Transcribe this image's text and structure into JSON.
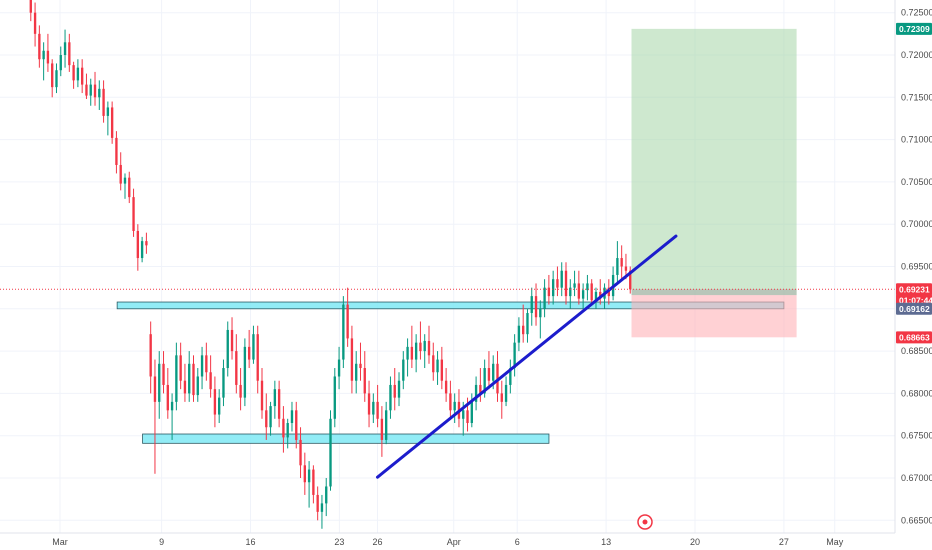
{
  "chart_data": {
    "type": "candlestick",
    "title": "",
    "xlabel": "",
    "ylabel": "",
    "ylim": [
      0.6635,
      0.7265
    ],
    "grid": true,
    "y_ticks": [
      "0.72500",
      "0.72000",
      "0.71500",
      "0.71000",
      "0.70500",
      "0.70000",
      "0.69500",
      "0.69000",
      "0.68500",
      "0.68000",
      "0.67500",
      "0.67000",
      "0.66500"
    ],
    "x_ticks": [
      {
        "label": "Mar",
        "day": 0
      },
      {
        "label": "9",
        "day": 8
      },
      {
        "label": "16",
        "day": 15
      },
      {
        "label": "23",
        "day": 22
      },
      {
        "label": "26",
        "day": 25
      },
      {
        "label": "Apr",
        "day": 31
      },
      {
        "label": "6",
        "day": 36
      },
      {
        "label": "13",
        "day": 43
      },
      {
        "label": "20",
        "day": 50
      },
      {
        "label": "27",
        "day": 57
      },
      {
        "label": "May",
        "day": 61
      }
    ],
    "price_tags": [
      {
        "label": "0.72309",
        "value": 0.72309,
        "color": "#089981"
      },
      {
        "label": "0.69231",
        "value": 0.69231,
        "color": "#f23645"
      },
      {
        "label": "01:07:44",
        "value": 0.691,
        "color": "#f23645"
      },
      {
        "label": "0.69162",
        "value": 0.69,
        "color": "#5d6b92"
      },
      {
        "label": "0.68663",
        "value": 0.68663,
        "color": "#f23645"
      }
    ],
    "current_price": 0.69231,
    "zones": [
      {
        "name": "resistance-zone",
        "top": 0.6908,
        "bottom": 0.69,
        "start_day": 4.5,
        "end_day": 57.0
      },
      {
        "name": "support-zone",
        "top": 0.6752,
        "bottom": 0.6741,
        "start_day": 6.5,
        "end_day": 38.5
      }
    ],
    "trendline": {
      "start": {
        "day": 25,
        "price": 0.6701
      },
      "end": {
        "day": 48.5,
        "price": 0.6986
      }
    },
    "position": {
      "start_day": 45.0,
      "end_day": 58.0,
      "entry": 0.69162,
      "target": 0.72309,
      "stop": 0.68663
    },
    "up_color": "#089981",
    "down_color": "#f23645",
    "candles": [
      [
        0.727,
        0.7285,
        0.724,
        0.725
      ],
      [
        0.725,
        0.7262,
        0.721,
        0.7225
      ],
      [
        0.7225,
        0.7235,
        0.7185,
        0.7195
      ],
      [
        0.7195,
        0.7215,
        0.717,
        0.7205
      ],
      [
        0.7205,
        0.7225,
        0.718,
        0.719
      ],
      [
        0.719,
        0.7195,
        0.715,
        0.7162
      ],
      [
        0.7162,
        0.719,
        0.7155,
        0.7182
      ],
      [
        0.7182,
        0.721,
        0.7175,
        0.72
      ],
      [
        0.72,
        0.723,
        0.7185,
        0.7215
      ],
      [
        0.7215,
        0.7225,
        0.718,
        0.7188
      ],
      [
        0.7188,
        0.7192,
        0.716,
        0.717
      ],
      [
        0.717,
        0.7195,
        0.7162,
        0.7185
      ],
      [
        0.7185,
        0.7195,
        0.7155,
        0.7165
      ],
      [
        0.7165,
        0.7178,
        0.7148,
        0.7152
      ],
      [
        0.7152,
        0.7172,
        0.714,
        0.7165
      ],
      [
        0.7165,
        0.718,
        0.714,
        0.715
      ],
      [
        0.715,
        0.717,
        0.7135,
        0.716
      ],
      [
        0.716,
        0.717,
        0.712,
        0.7128
      ],
      [
        0.7128,
        0.7145,
        0.7105,
        0.7138
      ],
      [
        0.7138,
        0.7145,
        0.7095,
        0.7102
      ],
      [
        0.7102,
        0.711,
        0.706,
        0.707
      ],
      [
        0.707,
        0.7085,
        0.704,
        0.7048
      ],
      [
        0.7048,
        0.706,
        0.703,
        0.7055
      ],
      [
        0.7055,
        0.7062,
        0.7025,
        0.7032
      ],
      [
        0.7032,
        0.7042,
        0.6985,
        0.6992
      ],
      [
        0.6992,
        0.7,
        0.6945,
        0.696
      ],
      [
        0.696,
        0.6985,
        0.6955,
        0.698
      ],
      [
        0.698,
        0.699,
        0.6965,
        0.6975
      ],
      [
        0.687,
        0.6885,
        0.68,
        0.682
      ],
      [
        0.682,
        0.684,
        0.6705,
        0.679
      ],
      [
        0.679,
        0.685,
        0.677,
        0.6835
      ],
      [
        0.6835,
        0.685,
        0.68,
        0.681
      ],
      [
        0.681,
        0.683,
        0.677,
        0.678
      ],
      [
        0.678,
        0.68,
        0.6745,
        0.679
      ],
      [
        0.679,
        0.686,
        0.678,
        0.6845
      ],
      [
        0.6845,
        0.686,
        0.6805,
        0.6815
      ],
      [
        0.6815,
        0.6835,
        0.679,
        0.68
      ],
      [
        0.68,
        0.685,
        0.679,
        0.6835
      ],
      [
        0.6835,
        0.6845,
        0.679,
        0.6798
      ],
      [
        0.6798,
        0.683,
        0.679,
        0.682
      ],
      [
        0.682,
        0.6855,
        0.6805,
        0.6845
      ],
      [
        0.6845,
        0.686,
        0.6815,
        0.6825
      ],
      [
        0.6825,
        0.6845,
        0.6795,
        0.6805
      ],
      [
        0.6805,
        0.682,
        0.676,
        0.6775
      ],
      [
        0.6775,
        0.6805,
        0.6765,
        0.6795
      ],
      [
        0.6795,
        0.684,
        0.6785,
        0.683
      ],
      [
        0.683,
        0.6885,
        0.682,
        0.6875
      ],
      [
        0.6875,
        0.689,
        0.684,
        0.685
      ],
      [
        0.685,
        0.687,
        0.68,
        0.681
      ],
      [
        0.681,
        0.683,
        0.678,
        0.6795
      ],
      [
        0.6795,
        0.6865,
        0.6785,
        0.6855
      ],
      [
        0.6855,
        0.6875,
        0.683,
        0.684
      ],
      [
        0.684,
        0.688,
        0.6835,
        0.687
      ],
      [
        0.687,
        0.688,
        0.68,
        0.6815
      ],
      [
        0.6815,
        0.683,
        0.677,
        0.678
      ],
      [
        0.678,
        0.68,
        0.6745,
        0.676
      ],
      [
        0.676,
        0.679,
        0.675,
        0.6785
      ],
      [
        0.6785,
        0.6815,
        0.677,
        0.6805
      ],
      [
        0.6805,
        0.6815,
        0.676,
        0.677
      ],
      [
        0.677,
        0.6785,
        0.673,
        0.6748
      ],
      [
        0.6748,
        0.677,
        0.6735,
        0.6765
      ],
      [
        0.6765,
        0.679,
        0.6755,
        0.678
      ],
      [
        0.678,
        0.679,
        0.6735,
        0.6745
      ],
      [
        0.6745,
        0.676,
        0.67,
        0.6715
      ],
      [
        0.6715,
        0.673,
        0.668,
        0.6695
      ],
      [
        0.6695,
        0.672,
        0.6665,
        0.671
      ],
      [
        0.671,
        0.6715,
        0.667,
        0.668
      ],
      [
        0.668,
        0.669,
        0.665,
        0.666
      ],
      [
        0.666,
        0.668,
        0.664,
        0.667
      ],
      [
        0.667,
        0.67,
        0.6655,
        0.669
      ],
      [
        0.669,
        0.678,
        0.6685,
        0.677
      ],
      [
        0.677,
        0.683,
        0.676,
        0.682
      ],
      [
        0.682,
        0.6855,
        0.6805,
        0.684
      ],
      [
        0.684,
        0.6915,
        0.683,
        0.6905
      ],
      [
        0.6905,
        0.6925,
        0.6855,
        0.6865
      ],
      [
        0.6865,
        0.688,
        0.68,
        0.6815
      ],
      [
        0.6815,
        0.685,
        0.68,
        0.6835
      ],
      [
        0.6835,
        0.686,
        0.6815,
        0.683
      ],
      [
        0.683,
        0.685,
        0.679,
        0.68
      ],
      [
        0.68,
        0.6815,
        0.676,
        0.6775
      ],
      [
        0.6775,
        0.68,
        0.6765,
        0.679
      ],
      [
        0.679,
        0.681,
        0.676,
        0.677
      ],
      [
        0.677,
        0.6785,
        0.6725,
        0.6745
      ],
      [
        0.6745,
        0.679,
        0.674,
        0.678
      ],
      [
        0.678,
        0.682,
        0.677,
        0.681
      ],
      [
        0.681,
        0.683,
        0.678,
        0.6795
      ],
      [
        0.6795,
        0.6825,
        0.6785,
        0.6815
      ],
      [
        0.6815,
        0.685,
        0.6805,
        0.684
      ],
      [
        0.684,
        0.6865,
        0.682,
        0.6855
      ],
      [
        0.6855,
        0.688,
        0.683,
        0.684
      ],
      [
        0.684,
        0.687,
        0.6825,
        0.686
      ],
      [
        0.686,
        0.6885,
        0.684,
        0.685
      ],
      [
        0.685,
        0.687,
        0.683,
        0.6862
      ],
      [
        0.6862,
        0.688,
        0.6835,
        0.6845
      ],
      [
        0.6845,
        0.686,
        0.6815,
        0.6825
      ],
      [
        0.6825,
        0.685,
        0.681,
        0.684
      ],
      [
        0.684,
        0.6855,
        0.6805,
        0.6815
      ],
      [
        0.6815,
        0.683,
        0.679,
        0.68
      ],
      [
        0.68,
        0.6815,
        0.677,
        0.678
      ],
      [
        0.678,
        0.68,
        0.6765,
        0.679
      ],
      [
        0.679,
        0.6805,
        0.676,
        0.677
      ],
      [
        0.677,
        0.679,
        0.675,
        0.678
      ],
      [
        0.678,
        0.6795,
        0.6755,
        0.6765
      ],
      [
        0.6765,
        0.68,
        0.676,
        0.679
      ],
      [
        0.679,
        0.682,
        0.678,
        0.681
      ],
      [
        0.681,
        0.683,
        0.679,
        0.68
      ],
      [
        0.68,
        0.684,
        0.6795,
        0.683
      ],
      [
        0.683,
        0.685,
        0.6805,
        0.6815
      ],
      [
        0.6815,
        0.6845,
        0.6805,
        0.6835
      ],
      [
        0.6835,
        0.685,
        0.679,
        0.68
      ],
      [
        0.68,
        0.6815,
        0.677,
        0.679
      ],
      [
        0.679,
        0.682,
        0.6785,
        0.681
      ],
      [
        0.681,
        0.684,
        0.68,
        0.683
      ],
      [
        0.683,
        0.687,
        0.682,
        0.686
      ],
      [
        0.686,
        0.689,
        0.685,
        0.688
      ],
      [
        0.688,
        0.6905,
        0.686,
        0.687
      ],
      [
        0.687,
        0.69,
        0.686,
        0.6895
      ],
      [
        0.6895,
        0.6925,
        0.688,
        0.6915
      ],
      [
        0.6915,
        0.693,
        0.688,
        0.689
      ],
      [
        0.689,
        0.691,
        0.6865,
        0.69
      ],
      [
        0.69,
        0.6935,
        0.689,
        0.6925
      ],
      [
        0.6925,
        0.694,
        0.6905,
        0.6915
      ],
      [
        0.6915,
        0.6945,
        0.6905,
        0.6935
      ],
      [
        0.6935,
        0.695,
        0.6915,
        0.6925
      ],
      [
        0.6925,
        0.6955,
        0.6915,
        0.6945
      ],
      [
        0.6945,
        0.6955,
        0.6905,
        0.6915
      ],
      [
        0.6915,
        0.6935,
        0.69,
        0.6925
      ],
      [
        0.6925,
        0.6945,
        0.6915,
        0.693
      ],
      [
        0.693,
        0.6945,
        0.6905,
        0.6912
      ],
      [
        0.6912,
        0.693,
        0.69,
        0.6922
      ],
      [
        0.6922,
        0.694,
        0.691,
        0.693
      ],
      [
        0.693,
        0.6935,
        0.6905,
        0.691
      ],
      [
        0.691,
        0.6925,
        0.69,
        0.692
      ],
      [
        0.692,
        0.6935,
        0.6905,
        0.6912
      ],
      [
        0.6912,
        0.693,
        0.69,
        0.6925
      ],
      [
        0.6925,
        0.6935,
        0.6905,
        0.6915
      ],
      [
        0.6915,
        0.695,
        0.691,
        0.694
      ],
      [
        0.694,
        0.698,
        0.693,
        0.696
      ],
      [
        0.696,
        0.6975,
        0.6935,
        0.695
      ],
      [
        0.695,
        0.6965,
        0.6935,
        0.6945
      ],
      [
        0.6945,
        0.695,
        0.6918,
        0.6923
      ]
    ]
  }
}
